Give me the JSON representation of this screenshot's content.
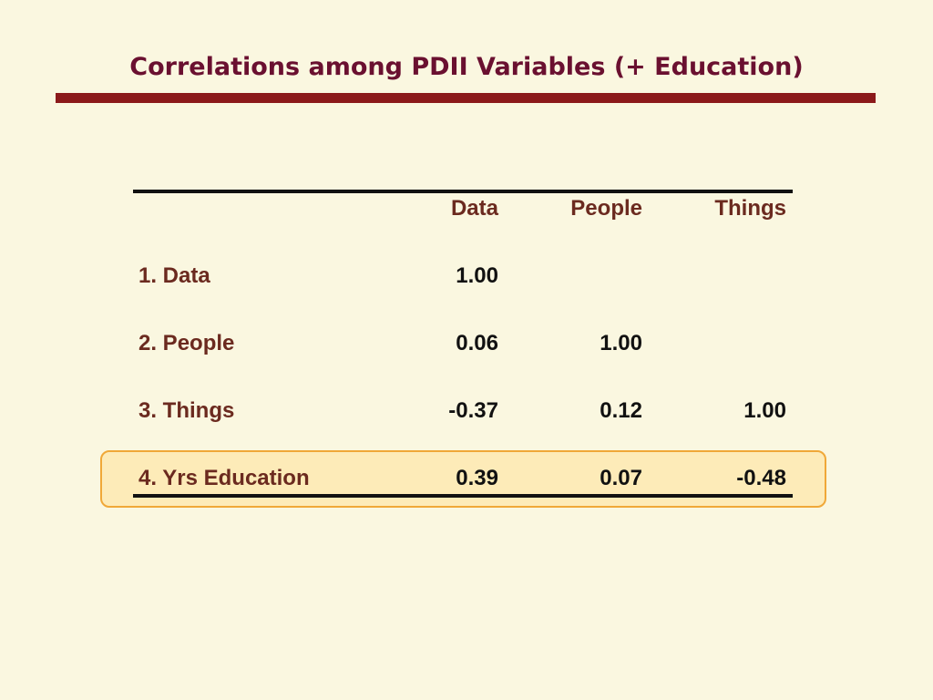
{
  "slide": {
    "title": "Correlations among PDII Variables (+ Education)"
  },
  "table": {
    "columns": [
      "Data",
      "People",
      "Things"
    ],
    "rows": [
      {
        "label": "1. Data",
        "values": [
          "1.00",
          "",
          ""
        ]
      },
      {
        "label": "2. People",
        "values": [
          "0.06",
          "1.00",
          ""
        ]
      },
      {
        "label": "3. Things",
        "values": [
          "-0.37",
          "0.12",
          "1.00"
        ]
      },
      {
        "label": "4. Yrs Education",
        "values": [
          "0.39",
          "0.07",
          "-0.48"
        ]
      }
    ]
  },
  "colors": {
    "background": "#faf7e0",
    "title": "#6a1030",
    "title_rule": "#8b1a1a",
    "labels": "#6b2a1f",
    "highlight_fill": "#fdebb8",
    "highlight_border": "#f0a838"
  }
}
